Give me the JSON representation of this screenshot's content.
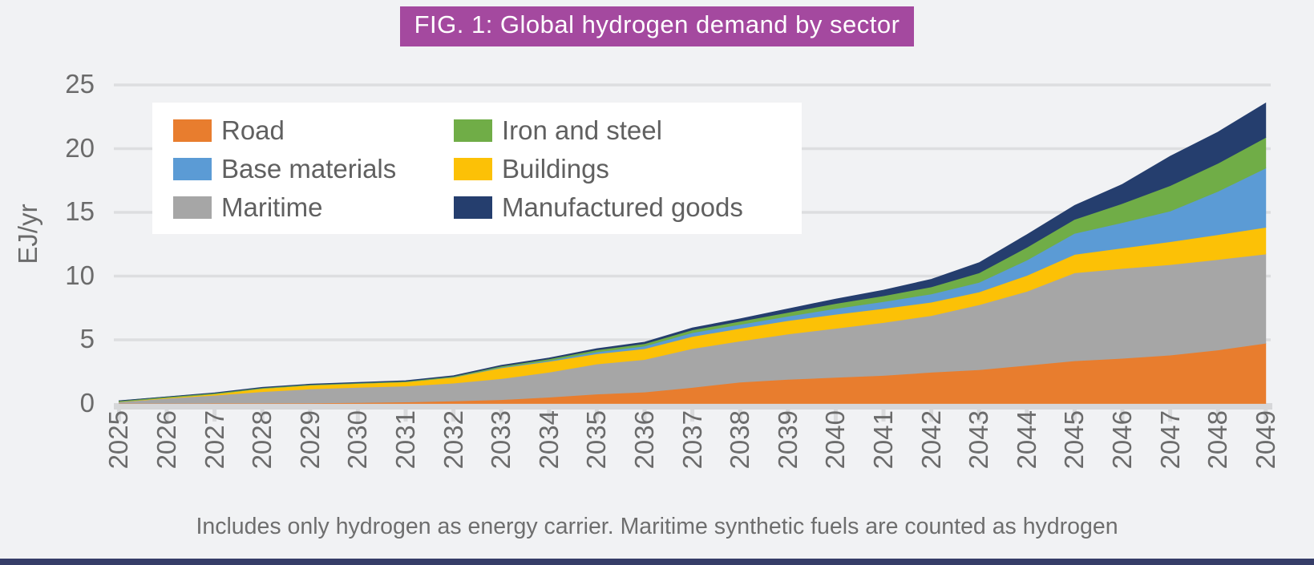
{
  "title": {
    "text": "FIG. 1: Global hydrogen demand by sector",
    "bg_color": "#A4499F",
    "text_color": "#FFFFFF"
  },
  "y_axis": {
    "label": "EJ/yr",
    "ticks": [
      "0",
      "5",
      "10",
      "15",
      "20",
      "25"
    ]
  },
  "x_axis": {
    "labels": [
      "2025",
      "2026",
      "2027",
      "2028",
      "2029",
      "2030",
      "2031",
      "2032",
      "2033",
      "2034",
      "2035",
      "2036",
      "2037",
      "2038",
      "2039",
      "2040",
      "2041",
      "2042",
      "2043",
      "2044",
      "2045",
      "2046",
      "2047",
      "2048",
      "2049"
    ]
  },
  "legend": {
    "items": [
      {
        "label": "Road",
        "color": "#E87D2E"
      },
      {
        "label": "Iron and steel",
        "color": "#70AD47"
      },
      {
        "label": "Base materials",
        "color": "#5B9BD5"
      },
      {
        "label": "Buildings",
        "color": "#FCC106"
      },
      {
        "label": "Maritime",
        "color": "#A6A6A6"
      },
      {
        "label": "Manufactured goods",
        "color": "#253E6E"
      }
    ]
  },
  "caption": "Includes only hydrogen as energy carrier. Maritime synthetic fuels are counted as hydrogen",
  "colors": {
    "background": "#F1F2F4",
    "gridline": "#DDDEE0",
    "axis_line": "#D6D7D9",
    "tick_mark": "#D9DADC",
    "axis_text": "#6B6B6B",
    "bottom_bar": "#363D68"
  },
  "chart_data": {
    "type": "area",
    "stacked": true,
    "title": "FIG. 1: Global hydrogen demand by sector",
    "xlabel": "",
    "ylabel": "EJ/yr",
    "ylim": [
      0,
      25
    ],
    "grid": true,
    "legend_position": "upper left",
    "x": [
      2025,
      2026,
      2027,
      2028,
      2029,
      2030,
      2031,
      2032,
      2033,
      2034,
      2035,
      2036,
      2037,
      2038,
      2039,
      2040,
      2041,
      2042,
      2043,
      2044,
      2045,
      2046,
      2047,
      2048,
      2049
    ],
    "series": [
      {
        "name": "Road",
        "color": "#E87D2E",
        "values": [
          0.02,
          0.02,
          0.03,
          0.03,
          0.04,
          0.07,
          0.12,
          0.2,
          0.3,
          0.5,
          0.74,
          0.9,
          1.26,
          1.68,
          1.9,
          2.05,
          2.2,
          2.45,
          2.65,
          3.0,
          3.35,
          3.55,
          3.8,
          4.2,
          4.73
        ]
      },
      {
        "name": "Maritime",
        "color": "#A6A6A6",
        "values": [
          0.1,
          0.38,
          0.62,
          0.9,
          1.1,
          1.2,
          1.25,
          1.4,
          1.65,
          1.95,
          2.36,
          2.55,
          3.05,
          3.22,
          3.55,
          3.85,
          4.15,
          4.45,
          5.1,
          5.8,
          6.9,
          7.05,
          7.1,
          7.1,
          7.0
        ]
      },
      {
        "name": "Buildings",
        "color": "#FCC106",
        "values": [
          0.02,
          0.06,
          0.1,
          0.25,
          0.3,
          0.3,
          0.33,
          0.45,
          0.85,
          0.85,
          0.8,
          0.85,
          0.95,
          1.0,
          1.05,
          1.1,
          1.1,
          1.05,
          1.0,
          1.25,
          1.45,
          1.6,
          1.8,
          1.95,
          2.1
        ]
      },
      {
        "name": "Base materials",
        "color": "#5B9BD5",
        "values": [
          0.0,
          0.0,
          0.0,
          0.0,
          0.0,
          0.0,
          0.0,
          0.02,
          0.05,
          0.08,
          0.15,
          0.2,
          0.3,
          0.3,
          0.35,
          0.45,
          0.55,
          0.65,
          0.75,
          1.2,
          1.65,
          2.0,
          2.4,
          3.4,
          4.65
        ]
      },
      {
        "name": "Iron and steel",
        "color": "#70AD47",
        "values": [
          0.07,
          0.06,
          0.07,
          0.06,
          0.05,
          0.05,
          0.05,
          0.06,
          0.08,
          0.12,
          0.16,
          0.2,
          0.22,
          0.25,
          0.3,
          0.4,
          0.45,
          0.55,
          0.75,
          1.0,
          1.1,
          1.5,
          2.0,
          2.2,
          2.4
        ]
      },
      {
        "name": "Manufactured goods",
        "color": "#253E6E",
        "values": [
          0.01,
          0.01,
          0.02,
          0.03,
          0.03,
          0.04,
          0.04,
          0.05,
          0.07,
          0.08,
          0.1,
          0.12,
          0.15,
          0.2,
          0.28,
          0.35,
          0.45,
          0.6,
          0.8,
          1.0,
          1.1,
          1.5,
          2.3,
          2.45,
          2.7
        ]
      }
    ]
  }
}
